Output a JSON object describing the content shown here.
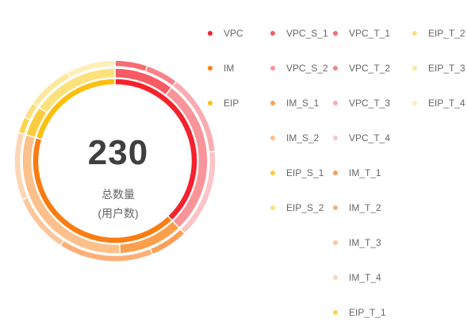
{
  "center": {
    "value": "230",
    "label_line1": "总数量",
    "label_line2": "(用户数)"
  },
  "chart_data": {
    "type": "pie",
    "variant": "nested-donut",
    "total": 230,
    "rings": [
      {
        "name": "category",
        "slices": [
          {
            "name": "VPC",
            "value": 87,
            "color": "#f5222d"
          },
          {
            "name": "IM",
            "value": 96,
            "color": "#fa7d11"
          },
          {
            "name": "EIP",
            "value": 47,
            "color": "#fbbf0e"
          }
        ]
      },
      {
        "name": "subcategory",
        "slices": [
          {
            "name": "VPC_S_1",
            "value": 24,
            "color": "#f75a63"
          },
          {
            "name": "VPC_S_2",
            "value": 63,
            "color": "#f9959a"
          },
          {
            "name": "IM_S_1",
            "value": 26,
            "color": "#fb9f4e"
          },
          {
            "name": "IM_S_2",
            "value": 70,
            "color": "#fdc08a"
          },
          {
            "name": "EIP_S_1",
            "value": 12,
            "color": "#fccc3e"
          },
          {
            "name": "EIP_S_2",
            "value": 35,
            "color": "#fde27c"
          }
        ]
      },
      {
        "name": "type",
        "slices": [
          {
            "name": "VPC_T_1",
            "value": 12,
            "color": "#f86a71"
          },
          {
            "name": "VPC_T_2",
            "value": 12,
            "color": "#f98288"
          },
          {
            "name": "VPC_T_3",
            "value": 30,
            "color": "#fbacb0"
          },
          {
            "name": "VPC_T_4",
            "value": 33,
            "color": "#fcc4c6"
          },
          {
            "name": "IM_T_1",
            "value": 14,
            "color": "#fc9e57"
          },
          {
            "name": "IM_T_2",
            "value": 35,
            "color": "#fdae76"
          },
          {
            "name": "IM_T_3",
            "value": 22,
            "color": "#fec59b"
          },
          {
            "name": "IM_T_4",
            "value": 25,
            "color": "#fed6b6"
          },
          {
            "name": "EIP_T_1",
            "value": 6,
            "color": "#fcd54f"
          },
          {
            "name": "EIP_T_2",
            "value": 6,
            "color": "#fcdf7e"
          },
          {
            "name": "EIP_T_3",
            "value": 17,
            "color": "#fde89c"
          },
          {
            "name": "EIP_T_4",
            "value": 18,
            "color": "#feefb8"
          }
        ]
      }
    ],
    "legend": {
      "placement": "right",
      "columns": [
        [
          "VPC",
          "IM",
          "EIP"
        ],
        [
          "VPC_S_1",
          "VPC_S_2",
          "IM_S_1",
          "IM_S_2",
          "EIP_S_1",
          "EIP_S_2"
        ],
        [
          "VPC_T_1",
          "VPC_T_2",
          "VPC_T_3",
          "VPC_T_4",
          "IM_T_1",
          "IM_T_2",
          "IM_T_3",
          "IM_T_4",
          "EIP_T_1"
        ],
        [
          "EIP_T_2",
          "EIP_T_3",
          "EIP_T_4"
        ]
      ]
    }
  }
}
